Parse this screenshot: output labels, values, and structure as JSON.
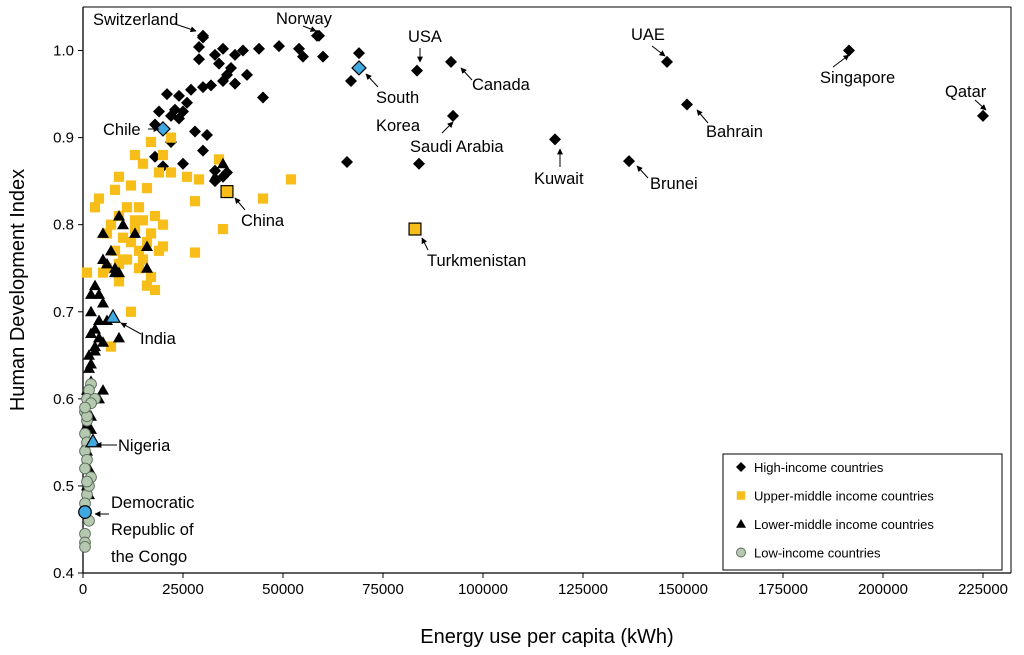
{
  "chart_data": {
    "type": "scatter",
    "title": "",
    "xlabel": "Energy use per capita (kWh)",
    "ylabel": "Human Development Index",
    "xlim": [
      0,
      232000
    ],
    "ylim": [
      0.4,
      1.05
    ],
    "xticks": [
      0,
      25000,
      50000,
      75000,
      100000,
      125000,
      150000,
      175000,
      200000,
      225000
    ],
    "xtick_labels": [
      "0",
      "25000",
      "50000",
      "75000",
      "100000",
      "125000",
      "150000",
      "175000",
      "200000",
      "225000"
    ],
    "yticks": [
      0.4,
      0.5,
      0.6,
      0.7,
      0.8,
      0.9,
      1.0
    ],
    "ytick_labels": [
      "0.4",
      "0.5",
      "0.6",
      "0.7",
      "0.8",
      "0.9",
      "1.0"
    ],
    "grid": false,
    "legend_position": "bottom-right",
    "series": [
      {
        "name": "High-income countries",
        "marker": "diamond",
        "color": "#000000",
        "points": [
          [
            30000,
            1.017
          ],
          [
            29000,
            1.004
          ],
          [
            35000,
            1.002
          ],
          [
            40000,
            1.0
          ],
          [
            44000,
            1.002
          ],
          [
            49000,
            1.005
          ],
          [
            54000,
            1.002
          ],
          [
            55000,
            0.993
          ],
          [
            60000,
            0.993
          ],
          [
            38000,
            0.995
          ],
          [
            33000,
            0.995
          ],
          [
            29000,
            0.99
          ],
          [
            34000,
            0.985
          ],
          [
            37000,
            0.98
          ],
          [
            41000,
            0.972
          ],
          [
            36000,
            0.972
          ],
          [
            32000,
            0.96
          ],
          [
            30000,
            0.958
          ],
          [
            27000,
            0.955
          ],
          [
            24000,
            0.948
          ],
          [
            21000,
            0.95
          ],
          [
            35000,
            0.965
          ],
          [
            38000,
            0.962
          ],
          [
            45000,
            0.946
          ],
          [
            26000,
            0.94
          ],
          [
            23000,
            0.932
          ],
          [
            25000,
            0.93
          ],
          [
            22000,
            0.925
          ],
          [
            19000,
            0.93
          ],
          [
            24000,
            0.922
          ],
          [
            18000,
            0.915
          ],
          [
            28000,
            0.907
          ],
          [
            31000,
            0.903
          ],
          [
            22000,
            0.895
          ],
          [
            30000,
            0.885
          ],
          [
            25000,
            0.87
          ],
          [
            18000,
            0.878
          ],
          [
            20000,
            0.867
          ],
          [
            33000,
            0.862
          ],
          [
            36000,
            0.86
          ],
          [
            35000,
            0.855
          ],
          [
            33000,
            0.85
          ],
          [
            69000,
            0.997
          ],
          [
            67000,
            0.965
          ],
          [
            66000,
            0.872
          ],
          [
            84000,
            0.87
          ],
          [
            58500,
            1.017
          ]
        ]
      },
      {
        "name": "Upper-middle income countries",
        "marker": "square",
        "color": "#f7be19",
        "points": [
          [
            4000,
            0.83
          ],
          [
            3000,
            0.82
          ],
          [
            8000,
            0.84
          ],
          [
            12000,
            0.845
          ],
          [
            9000,
            0.855
          ],
          [
            13000,
            0.88
          ],
          [
            17000,
            0.895
          ],
          [
            15000,
            0.87
          ],
          [
            20000,
            0.88
          ],
          [
            22000,
            0.9
          ],
          [
            19000,
            0.86
          ],
          [
            16000,
            0.842
          ],
          [
            14000,
            0.82
          ],
          [
            11000,
            0.82
          ],
          [
            9000,
            0.81
          ],
          [
            7000,
            0.8
          ],
          [
            6000,
            0.79
          ],
          [
            10000,
            0.785
          ],
          [
            12000,
            0.78
          ],
          [
            8000,
            0.77
          ],
          [
            11000,
            0.76
          ],
          [
            9000,
            0.755
          ],
          [
            6000,
            0.75
          ],
          [
            5000,
            0.745
          ],
          [
            1000,
            0.745
          ],
          [
            14000,
            0.77
          ],
          [
            17000,
            0.79
          ],
          [
            18000,
            0.81
          ],
          [
            20000,
            0.8
          ],
          [
            15000,
            0.805
          ],
          [
            13000,
            0.795
          ],
          [
            16000,
            0.78
          ],
          [
            19000,
            0.77
          ],
          [
            17000,
            0.74
          ],
          [
            18000,
            0.725
          ],
          [
            16000,
            0.73
          ],
          [
            12000,
            0.7
          ],
          [
            22000,
            0.86
          ],
          [
            26000,
            0.855
          ],
          [
            29000,
            0.852
          ],
          [
            34000,
            0.875
          ],
          [
            35000,
            0.795
          ],
          [
            45000,
            0.83
          ],
          [
            52000,
            0.852
          ],
          [
            28000,
            0.827
          ],
          [
            28000,
            0.768
          ],
          [
            20000,
            0.775
          ],
          [
            7000,
            0.66
          ],
          [
            13000,
            0.805
          ],
          [
            15000,
            0.76
          ],
          [
            10000,
            0.76
          ],
          [
            9000,
            0.735
          ],
          [
            14000,
            0.75
          ]
        ]
      },
      {
        "name": "Lower-middle income countries",
        "marker": "triangle",
        "color": "#000000",
        "points": [
          [
            5000,
            0.79
          ],
          [
            7000,
            0.77
          ],
          [
            5000,
            0.76
          ],
          [
            6000,
            0.755
          ],
          [
            8000,
            0.75
          ],
          [
            9000,
            0.745
          ],
          [
            10000,
            0.8
          ],
          [
            9000,
            0.81
          ],
          [
            4000,
            0.72
          ],
          [
            3000,
            0.73
          ],
          [
            5000,
            0.71
          ],
          [
            2000,
            0.72
          ],
          [
            2000,
            0.7
          ],
          [
            4000,
            0.69
          ],
          [
            3000,
            0.68
          ],
          [
            2000,
            0.675
          ],
          [
            5000,
            0.665
          ],
          [
            3000,
            0.66
          ],
          [
            1500,
            0.65
          ],
          [
            2000,
            0.64
          ],
          [
            1500,
            0.635
          ],
          [
            2000,
            0.62
          ],
          [
            1000,
            0.61
          ],
          [
            4000,
            0.6
          ],
          [
            5000,
            0.61
          ],
          [
            1000,
            0.585
          ],
          [
            2000,
            0.58
          ],
          [
            1000,
            0.57
          ],
          [
            2000,
            0.565
          ],
          [
            1000,
            0.55
          ],
          [
            1000,
            0.54
          ],
          [
            1500,
            0.52
          ],
          [
            1000,
            0.5
          ],
          [
            1500,
            0.49
          ],
          [
            8000,
            0.745
          ],
          [
            13000,
            0.79
          ],
          [
            16000,
            0.775
          ],
          [
            16000,
            0.75
          ],
          [
            9000,
            0.67
          ],
          [
            6000,
            0.69
          ],
          [
            3000,
            0.655
          ],
          [
            4000,
            0.67
          ],
          [
            35000,
            0.87
          ],
          [
            33000,
            0.855
          ]
        ]
      },
      {
        "name": "Low-income countries",
        "marker": "circle",
        "color": "#b4c9b0",
        "points": [
          [
            2000,
            0.617
          ],
          [
            1500,
            0.61
          ],
          [
            1000,
            0.6
          ],
          [
            3000,
            0.6
          ],
          [
            2000,
            0.595
          ],
          [
            500,
            0.585
          ],
          [
            1000,
            0.575
          ],
          [
            500,
            0.56
          ],
          [
            1000,
            0.55
          ],
          [
            500,
            0.54
          ],
          [
            1000,
            0.53
          ],
          [
            500,
            0.52
          ],
          [
            2000,
            0.51
          ],
          [
            1000,
            0.49
          ],
          [
            1500,
            0.46
          ],
          [
            500,
            0.445
          ],
          [
            500,
            0.435
          ],
          [
            500,
            0.43
          ],
          [
            1000,
            0.58
          ],
          [
            500,
            0.59
          ],
          [
            1500,
            0.5
          ],
          [
            500,
            0.48
          ],
          [
            1000,
            0.505
          ]
        ]
      }
    ],
    "highlighted": [
      {
        "name": "South Korea",
        "marker": "diamond",
        "color": "#3fa9e0",
        "x": 69000,
        "y": 0.98
      },
      {
        "name": "Chile",
        "marker": "diamond",
        "color": "#3fa9e0",
        "x": 20000,
        "y": 0.91
      },
      {
        "name": "China",
        "marker": "square",
        "color": "#f7be19",
        "x": 36000,
        "y": 0.838
      },
      {
        "name": "Turkmenistan",
        "marker": "square",
        "color": "#f7be19",
        "x": 83000,
        "y": 0.795
      },
      {
        "name": "India",
        "marker": "triangle",
        "color": "#3fa9e0",
        "x": 7500,
        "y": 0.694
      },
      {
        "name": "Nigeria",
        "marker": "triangle",
        "color": "#3fa9e0",
        "x": 2500,
        "y": 0.551
      },
      {
        "name": "Democratic Republic of the Congo",
        "marker": "circle",
        "color": "#3fa9e0",
        "x": 500,
        "y": 0.47
      }
    ],
    "annotated_points": [
      {
        "name": "Switzerland",
        "marker": "diamond",
        "x": 30000,
        "y": 1.015
      },
      {
        "name": "Norway",
        "marker": "diamond",
        "x": 59000,
        "y": 1.017
      },
      {
        "name": "USA",
        "marker": "diamond",
        "x": 83500,
        "y": 0.977
      },
      {
        "name": "Canada",
        "marker": "diamond",
        "x": 92000,
        "y": 0.987
      },
      {
        "name": "Saudi Arabia",
        "marker": "diamond",
        "x": 92500,
        "y": 0.925
      },
      {
        "name": "Kuwait",
        "marker": "diamond",
        "x": 118000,
        "y": 0.898
      },
      {
        "name": "Brunei",
        "marker": "diamond",
        "x": 136500,
        "y": 0.873
      },
      {
        "name": "UAE",
        "marker": "diamond",
        "x": 146000,
        "y": 0.987
      },
      {
        "name": "Bahrain",
        "marker": "diamond",
        "x": 151000,
        "y": 0.938
      },
      {
        "name": "Singapore",
        "marker": "diamond",
        "x": 191500,
        "y": 1.0
      },
      {
        "name": "Qatar",
        "marker": "diamond",
        "x": 225000,
        "y": 0.925
      }
    ],
    "labels": {
      "switzerland": "Switzerland",
      "norway": "Norway",
      "usa": "USA",
      "canada": "Canada",
      "south_korea_1": "South",
      "south_korea_2": "Korea",
      "saudi_arabia": "Saudi Arabia",
      "kuwait": "Kuwait",
      "brunei": "Brunei",
      "uae": "UAE",
      "bahrain": "Bahrain",
      "singapore": "Singapore",
      "qatar": "Qatar",
      "chile": "Chile",
      "china": "China",
      "turkmenistan": "Turkmenistan",
      "india": "India",
      "nigeria": "Nigeria",
      "drc_1": "Democratic",
      "drc_2": "Republic of",
      "drc_3": "the Congo"
    },
    "legend": [
      {
        "label": "High-income countries",
        "marker": "diamond",
        "color": "#000000"
      },
      {
        "label": "Upper-middle income countries",
        "marker": "square",
        "color": "#f7be19"
      },
      {
        "label": "Lower-middle income countries",
        "marker": "triangle",
        "color": "#000000"
      },
      {
        "label": "Low-income countries",
        "marker": "circle",
        "color": "#b4c9b0"
      }
    ]
  }
}
